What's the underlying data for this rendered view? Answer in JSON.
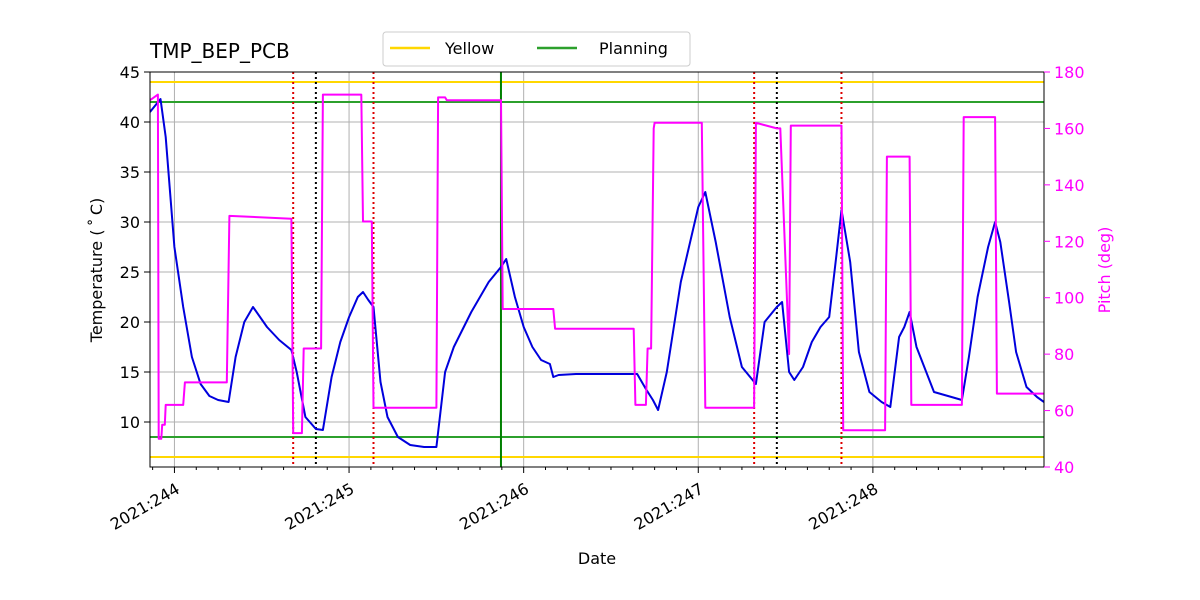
{
  "chart_data": {
    "type": "line",
    "title": "TMP_BEP_PCB",
    "xlabel": "Date",
    "ylabel": "Temperature ($^\\circ$C)",
    "ylabel_display": "Temperature ( ˚ C)",
    "y2label": "Pitch (deg)",
    "xlim": [
      243.86,
      248.98
    ],
    "ylim": [
      5.5,
      45
    ],
    "y2lim": [
      40,
      180
    ],
    "grid": true,
    "legend_placement": "top-center",
    "x_ticks": [
      {
        "value": 244,
        "label": "2021:244"
      },
      {
        "value": 245,
        "label": "2021:245"
      },
      {
        "value": 246,
        "label": "2021:246"
      },
      {
        "value": 247,
        "label": "2021:247"
      },
      {
        "value": 248,
        "label": "2021:248"
      }
    ],
    "y_ticks": [
      10,
      15,
      20,
      25,
      30,
      35,
      40,
      45
    ],
    "y2_ticks": [
      40,
      60,
      80,
      100,
      120,
      140,
      160,
      180
    ],
    "colors": {
      "temperature": "#0000dd",
      "pitch": "#ff00ff",
      "yellow": "#ffd700",
      "planning": "#2ca02c",
      "now": "#008000",
      "red_lines": "#dd0000",
      "black_lines": "#000000",
      "y2_axis": "#ff00ff",
      "grid": "#b0b0b0"
    },
    "legend": [
      {
        "label": "Yellow",
        "color": "#ffd700"
      },
      {
        "label": "Planning",
        "color": "#2ca02c"
      }
    ],
    "limit_lines": {
      "yellow": [
        6.5,
        44.0
      ],
      "planning": [
        8.5,
        42.0
      ]
    },
    "now_line_x": 245.87,
    "red_vlines": [
      244.68,
      245.14,
      247.32,
      247.82
    ],
    "black_vlines": [
      244.81,
      247.45
    ],
    "series": [
      {
        "name": "Temperature",
        "axis": "left",
        "x": [
          243.86,
          243.92,
          243.95,
          244.0,
          244.05,
          244.1,
          244.15,
          244.2,
          244.25,
          244.31,
          244.35,
          244.4,
          244.45,
          244.53,
          244.6,
          244.67,
          244.7,
          244.75,
          244.81,
          244.85,
          244.9,
          244.95,
          245.0,
          245.05,
          245.08,
          245.11,
          245.14,
          245.18,
          245.22,
          245.28,
          245.35,
          245.43,
          245.5,
          245.55,
          245.6,
          245.7,
          245.8,
          245.87,
          245.9,
          245.95,
          246.0,
          246.05,
          246.1,
          246.15,
          246.17,
          246.2,
          246.3,
          246.5,
          246.65,
          246.7,
          246.74,
          246.77,
          246.82,
          246.9,
          247.0,
          247.04,
          247.1,
          247.18,
          247.25,
          247.33,
          247.38,
          247.45,
          247.48,
          247.52,
          247.55,
          247.6,
          247.65,
          247.7,
          247.75,
          247.79,
          247.82,
          247.87,
          247.92,
          247.98,
          248.05,
          248.1,
          248.15,
          248.18,
          248.21,
          248.25,
          248.35,
          248.45,
          248.51,
          248.55,
          248.6,
          248.66,
          248.7,
          248.73,
          248.78,
          248.82,
          248.88,
          248.94,
          248.98
        ],
        "y": [
          41.0,
          42.3,
          38.5,
          27.5,
          21.5,
          16.5,
          13.8,
          12.6,
          12.2,
          12.0,
          16.5,
          20.0,
          21.5,
          19.5,
          18.2,
          17.2,
          15.0,
          10.5,
          9.3,
          9.2,
          14.5,
          18.0,
          20.5,
          22.5,
          23.0,
          22.2,
          21.5,
          14.0,
          10.5,
          8.5,
          7.7,
          7.5,
          7.5,
          15.0,
          17.5,
          21.0,
          24.0,
          25.5,
          26.3,
          22.5,
          19.5,
          17.5,
          16.2,
          15.8,
          14.5,
          14.7,
          14.8,
          14.8,
          14.8,
          13.3,
          12.2,
          11.2,
          15.0,
          24.0,
          31.5,
          33.0,
          28.0,
          20.5,
          15.5,
          13.8,
          20.0,
          21.5,
          22.0,
          15.0,
          14.2,
          15.5,
          18.0,
          19.5,
          20.5,
          26.5,
          31.2,
          26.0,
          17.0,
          13.0,
          12.0,
          11.5,
          18.5,
          19.5,
          21.0,
          17.5,
          13.0,
          12.5,
          12.2,
          16.5,
          22.5,
          27.5,
          30.0,
          28.0,
          22.0,
          17.0,
          13.5,
          12.5,
          12.0
        ]
      },
      {
        "name": "Pitch",
        "axis": "right",
        "x": [
          243.86,
          243.905,
          243.91,
          243.925,
          243.93,
          243.945,
          243.95,
          243.98,
          244.0,
          244.05,
          244.06,
          244.3,
          244.315,
          244.67,
          244.68,
          244.73,
          244.74,
          244.8,
          244.84,
          244.85,
          245.07,
          245.08,
          245.13,
          245.14,
          245.5,
          245.51,
          245.55,
          245.56,
          245.87,
          245.88,
          246.17,
          246.18,
          246.63,
          246.64,
          246.7,
          246.71,
          246.73,
          246.745,
          246.75,
          247.02,
          247.04,
          247.32,
          247.33,
          247.45,
          247.47,
          247.52,
          247.53,
          247.82,
          247.83,
          248.07,
          248.08,
          248.21,
          248.22,
          248.51,
          248.52,
          248.7,
          248.71,
          248.98
        ],
        "y": [
          170,
          172,
          50,
          50,
          55,
          55,
          62,
          62,
          62,
          62,
          70,
          70,
          129,
          128,
          52,
          52,
          82,
          82,
          82,
          172,
          172,
          127,
          127,
          61,
          61,
          171,
          171,
          170,
          170,
          96,
          96,
          89,
          89,
          62,
          62,
          82,
          82,
          160,
          162,
          162,
          61,
          61,
          162,
          160,
          160,
          80,
          161,
          161,
          53,
          53,
          150,
          150,
          62,
          62,
          164,
          164,
          66,
          66
        ]
      }
    ]
  }
}
